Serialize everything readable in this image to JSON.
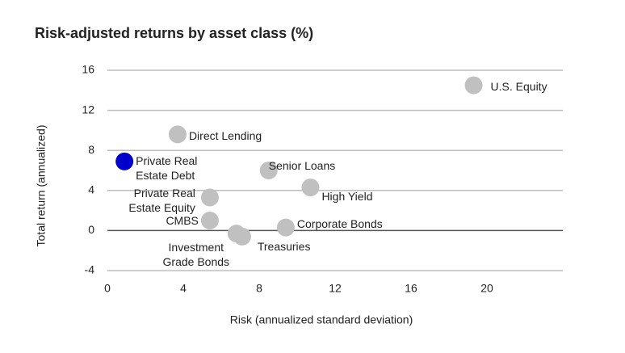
{
  "chart_data": {
    "type": "scatter",
    "title": "Risk-adjusted returns by asset class (%)",
    "x_label": "Risk (annualized standard deviation)",
    "y_label": "Total return (annualized)",
    "xlim": [
      0,
      24
    ],
    "ylim": [
      -4,
      16
    ],
    "xticks": [
      0,
      4,
      8,
      12,
      16,
      20
    ],
    "yticks": [
      -4,
      0,
      4,
      8,
      12,
      16
    ],
    "grid": true,
    "series": [
      {
        "labels": [
          "U.S. Equity",
          "Direct Lending",
          "Private Real Estate Debt",
          "Senior Loans",
          "High Yield",
          "Private Real Estate Equity",
          "CMBS",
          "Corporate Bonds",
          "Investment Grade Bonds",
          "Treasuries"
        ],
        "x": [
          19.3,
          3.7,
          0.9,
          8.5,
          10.7,
          5.4,
          5.4,
          9.4,
          6.8,
          7.1
        ],
        "values": [
          14.5,
          9.6,
          6.9,
          6.0,
          4.3,
          3.3,
          1.0,
          0.3,
          -0.3,
          -0.6
        ],
        "colors": [
          "#c0c0c0",
          "#c0c0c0",
          "#0000cc",
          "#c0c0c0",
          "#c0c0c0",
          "#c0c0c0",
          "#c0c0c0",
          "#c0c0c0",
          "#c0c0c0",
          "#c0c0c0"
        ]
      }
    ]
  }
}
